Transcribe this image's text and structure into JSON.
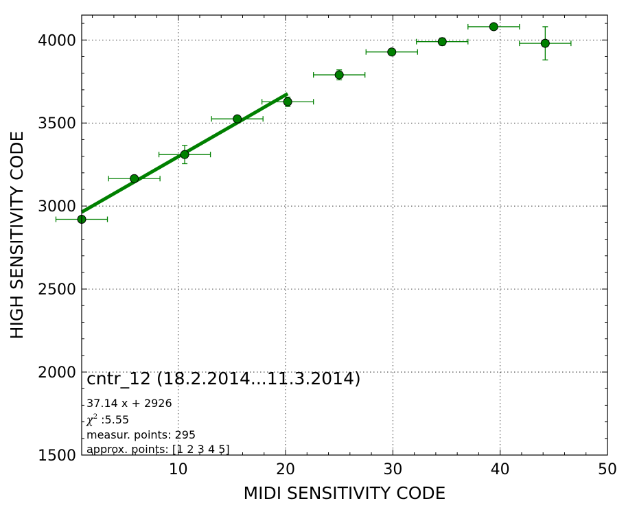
{
  "chart_data": {
    "type": "scatter",
    "xlabel": "MIDI SENSITIVITY CODE",
    "ylabel": "HIGH SENSITIVITY CODE",
    "xlim": [
      1,
      50
    ],
    "ylim": [
      1500,
      4150
    ],
    "x_ticks": [
      10,
      20,
      30,
      40,
      50
    ],
    "y_ticks": [
      1500,
      2000,
      2500,
      3000,
      3500,
      4000
    ],
    "grid": true,
    "grid_style": "dotted",
    "series": [
      {
        "type": "scatter",
        "marker": "circle",
        "color": "#008000",
        "errorbar_color": "#008000",
        "points": [
          {
            "x": 1.0,
            "y": 2920,
            "xerr": 2.4,
            "yerr": 18
          },
          {
            "x": 5.9,
            "y": 3165,
            "xerr": 2.4,
            "yerr": 15
          },
          {
            "x": 10.6,
            "y": 3310,
            "xerr": 2.4,
            "yerr": 55
          },
          {
            "x": 15.5,
            "y": 3525,
            "xerr": 2.4,
            "yerr": 18
          },
          {
            "x": 20.2,
            "y": 3628,
            "xerr": 2.4,
            "yerr": 28
          },
          {
            "x": 25.0,
            "y": 3790,
            "xerr": 2.4,
            "yerr": 30
          },
          {
            "x": 29.9,
            "y": 3928,
            "xerr": 2.4,
            "yerr": 15
          },
          {
            "x": 34.6,
            "y": 3990,
            "xerr": 2.4,
            "yerr": 22
          },
          {
            "x": 39.4,
            "y": 4080,
            "xerr": 2.4,
            "yerr": 12
          },
          {
            "x": 44.2,
            "y": 3980,
            "xerr": 2.4,
            "yerr": 100
          }
        ]
      },
      {
        "type": "line",
        "color": "#008000",
        "fit": {
          "slope": 37.14,
          "intercept": 2926
        },
        "x_range": [
          1,
          20.2
        ]
      }
    ],
    "annotation": {
      "title": "cntr_12 (18.2.2014...11.3.2014)",
      "equation": "37.14 x + 2926",
      "chi_symbol": "χ",
      "chi_exp": "2",
      "chi_value": " :5.55",
      "measur": "measur. points: 295",
      "approx": "approx. points: [1 2 3 4 5]"
    }
  }
}
